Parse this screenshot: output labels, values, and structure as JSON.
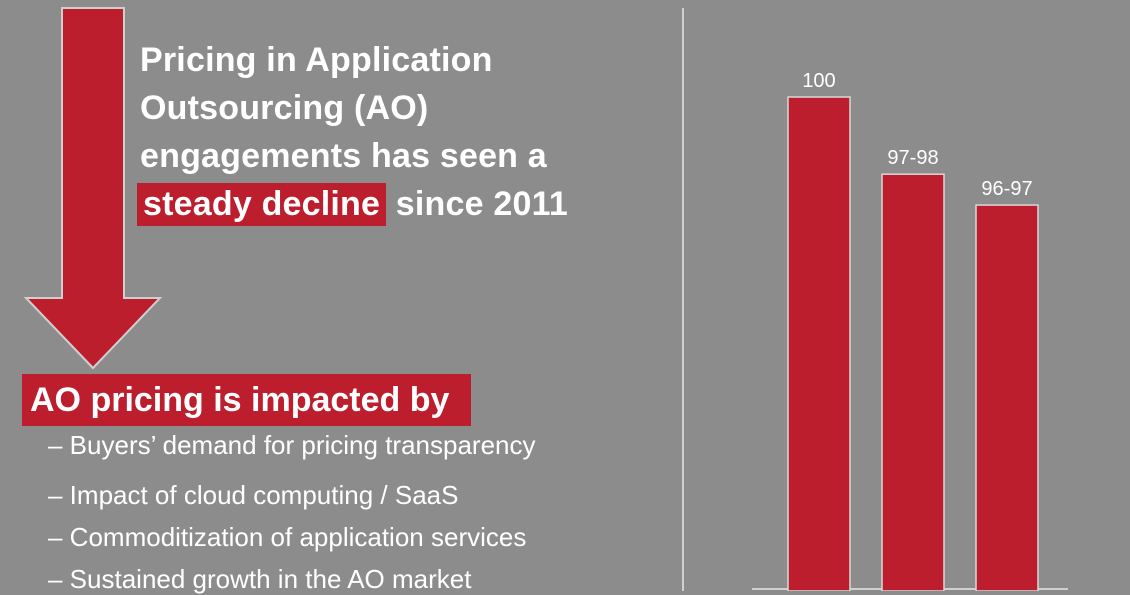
{
  "headline": {
    "line1": "Pricing in Application",
    "line2": "Outsourcing (AO)",
    "line3": "engagements has seen a",
    "highlight": "steady decline",
    "tail": " since 2011"
  },
  "subheading": "AO pricing is impacted by",
  "bullets": [
    "– Buyers’ demand for pricing transparency",
    "– Impact of cloud computing / SaaS",
    "– Commoditization of application services",
    "– Sustained growth in the AO market"
  ],
  "colors": {
    "background": "#8c8c8c",
    "accent": "#bc1e2d",
    "text": "#ffffff"
  },
  "chart_data": {
    "type": "bar",
    "title": "",
    "xlabel": "",
    "ylabel": "",
    "categories": [
      "",
      "",
      ""
    ],
    "values": [
      100,
      97.5,
      96.5
    ],
    "data_labels": [
      "100",
      "97-98",
      "96-97"
    ],
    "ylim": [
      84,
      100
    ],
    "grid": false,
    "bar_color": "#bc1e2d"
  }
}
